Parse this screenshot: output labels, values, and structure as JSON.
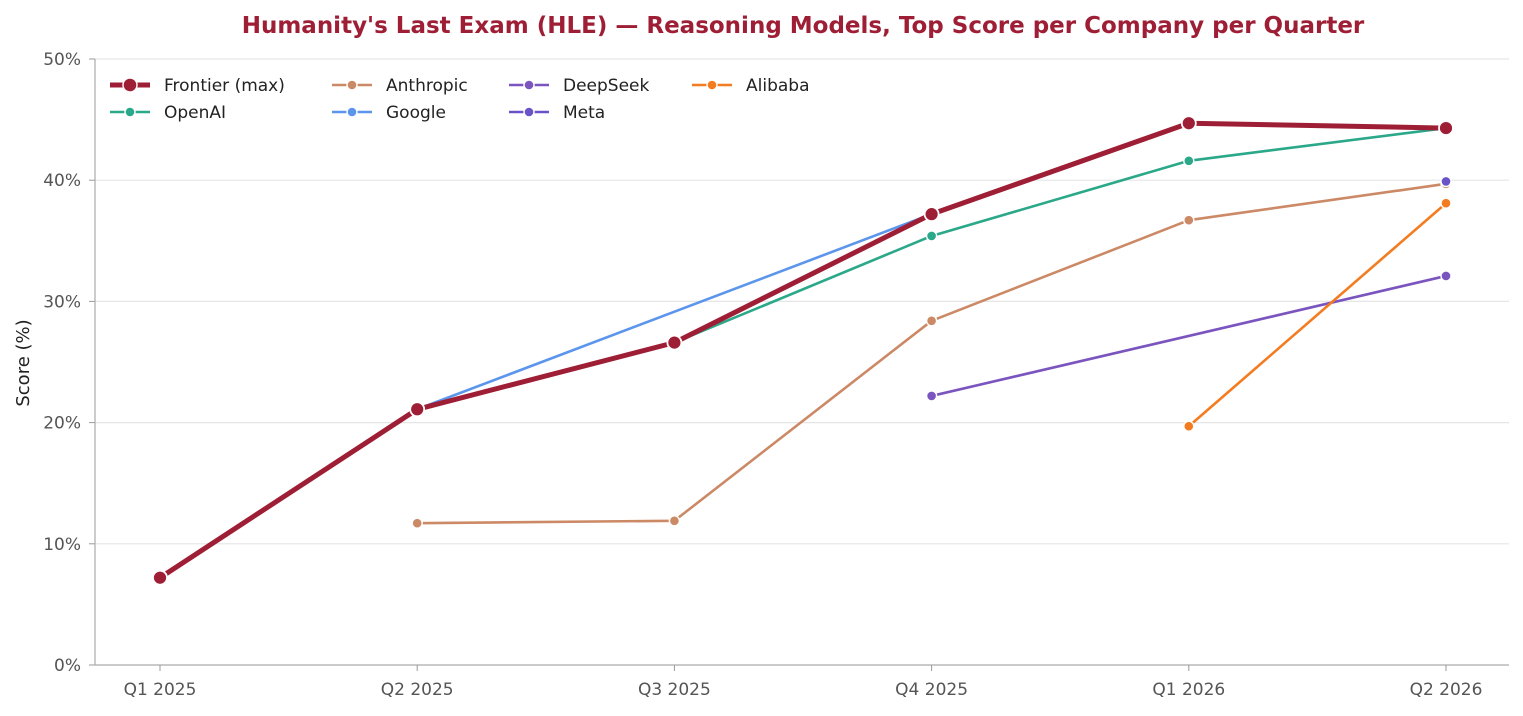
{
  "chart_data": {
    "type": "line",
    "title": "Humanity's Last Exam (HLE) — Reasoning Models, Top Score per Company per Quarter",
    "xlabel": "",
    "ylabel": "Score (%)",
    "categories": [
      "Q1 2025",
      "Q2 2025",
      "Q3 2025",
      "Q4 2025",
      "Q1 2026",
      "Q2 2026"
    ],
    "ylim": [
      0,
      50
    ],
    "yticks": [
      0,
      10,
      20,
      30,
      40,
      50
    ],
    "ytick_labels": [
      "0%",
      "10%",
      "20%",
      "30%",
      "40%",
      "50%"
    ],
    "grid": "horizontal",
    "legend_position": "top-left",
    "series": [
      {
        "name": "Frontier (max)",
        "color": "#9e1f35",
        "emphasis": true,
        "values": [
          7.2,
          21.1,
          26.6,
          37.2,
          44.7,
          44.3
        ]
      },
      {
        "name": "OpenAI",
        "color": "#2aa889",
        "values": [
          null,
          21.1,
          26.6,
          35.4,
          41.6,
          44.3
        ]
      },
      {
        "name": "Anthropic",
        "color": "#cc8966",
        "values": [
          null,
          11.7,
          11.9,
          28.4,
          36.7,
          39.7
        ]
      },
      {
        "name": "Google",
        "color": "#5b95ec",
        "values": [
          null,
          21.1,
          null,
          37.2,
          null,
          null
        ]
      },
      {
        "name": "DeepSeek",
        "color": "#7b55bf",
        "values": [
          null,
          null,
          null,
          22.2,
          null,
          32.1
        ]
      },
      {
        "name": "Meta",
        "color": "#6a52c8",
        "values": [
          null,
          null,
          null,
          null,
          null,
          39.9
        ]
      },
      {
        "name": "Alibaba",
        "color": "#f47c20",
        "values": [
          null,
          null,
          null,
          null,
          19.7,
          38.1
        ]
      }
    ],
    "legend_order": [
      "Frontier (max)",
      "OpenAI",
      "Anthropic",
      "Google",
      "DeepSeek",
      "Meta",
      "Alibaba"
    ]
  }
}
